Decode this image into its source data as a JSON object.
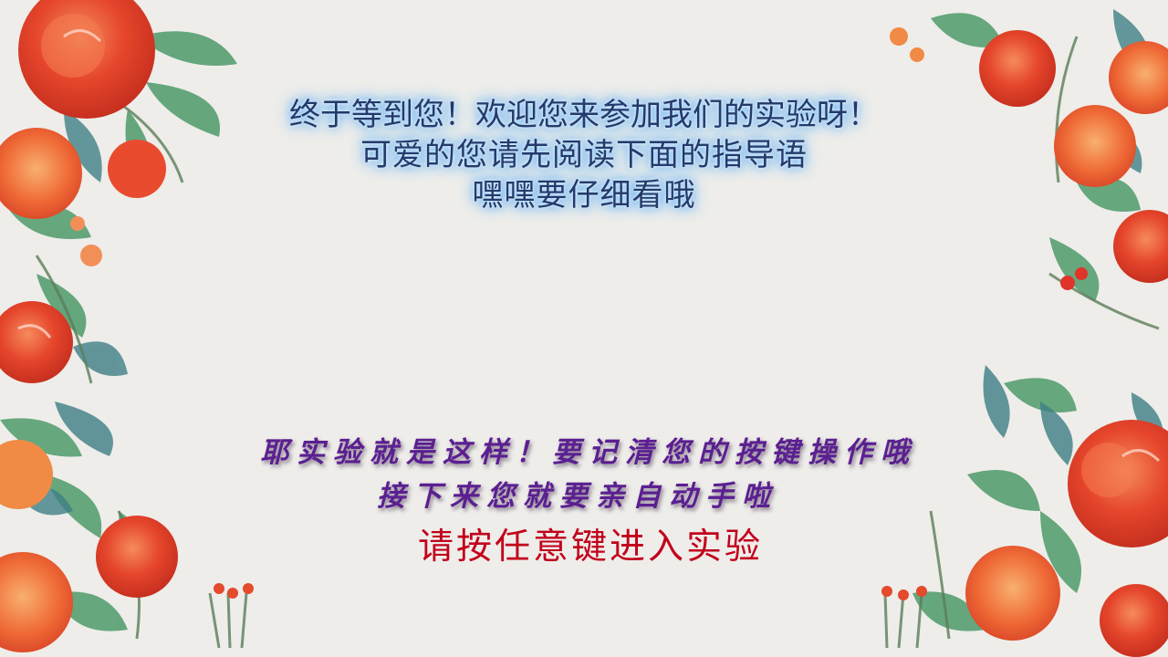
{
  "welcome": {
    "line1": "终于等到您！欢迎您来参加我们的实验呀！",
    "line2": "可爱的您请先阅读下面的指导语",
    "line3": "嘿嘿要仔细看哦"
  },
  "instructions": {
    "line1": "耶实验就是这样！要记清您的按键操作哦",
    "line2": "接下来您就要亲自动手啦"
  },
  "start_prompt": "请按任意键进入实验",
  "colors": {
    "background": "#eeedea",
    "welcome_text": "#233a6c",
    "welcome_glow": "#4fa3ee",
    "instruction_text": "#5b1f91",
    "start_text": "#c2001b",
    "flower_red": "#e8472c",
    "flower_orange": "#f07a3b",
    "leaf_green": "#4f9a6b",
    "leaf_teal": "#3f7f86"
  },
  "decor": {
    "left_border": "watercolor-floral-icon",
    "right_border": "watercolor-floral-icon"
  }
}
